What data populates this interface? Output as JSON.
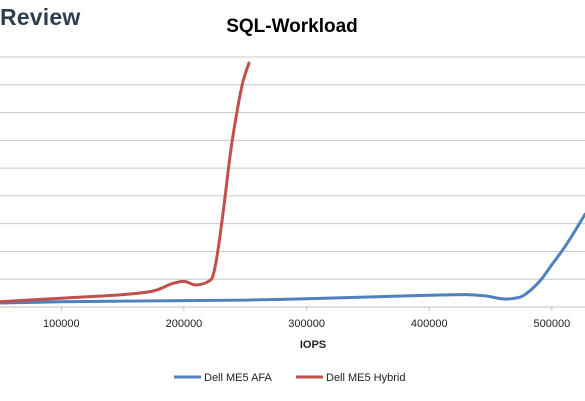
{
  "header": {
    "brand_text": "Review"
  },
  "chart_data": {
    "type": "line",
    "title": "SQL-Workload",
    "xlabel": "IOPS",
    "ylabel": "",
    "xlim": [
      50000,
      527000
    ],
    "ylim": [
      0,
      10
    ],
    "grid": true,
    "x_ticks": [
      100000,
      200000,
      300000,
      400000,
      500000
    ],
    "x_tick_labels": [
      "100000",
      "200000",
      "300000",
      "400000",
      "500000"
    ],
    "legend_position": "bottom",
    "series": [
      {
        "name": "Dell ME5 AFA",
        "color": "#4f81bd",
        "points": [
          [
            50000,
            0.0
          ],
          [
            100000,
            0.05
          ],
          [
            150000,
            0.08
          ],
          [
            200000,
            0.1
          ],
          [
            250000,
            0.12
          ],
          [
            300000,
            0.18
          ],
          [
            350000,
            0.25
          ],
          [
            400000,
            0.32
          ],
          [
            430000,
            0.35
          ],
          [
            445000,
            0.3
          ],
          [
            460000,
            0.17
          ],
          [
            470000,
            0.2
          ],
          [
            478000,
            0.35
          ],
          [
            490000,
            0.9
          ],
          [
            500000,
            1.6
          ],
          [
            510000,
            2.3
          ],
          [
            520000,
            3.1
          ],
          [
            527000,
            3.7
          ]
        ]
      },
      {
        "name": "Dell ME5 Hybrid",
        "color": "#c0504d",
        "points": [
          [
            50000,
            0.05
          ],
          [
            100000,
            0.2
          ],
          [
            150000,
            0.35
          ],
          [
            175000,
            0.5
          ],
          [
            190000,
            0.8
          ],
          [
            200000,
            0.9
          ],
          [
            210000,
            0.75
          ],
          [
            220000,
            0.9
          ],
          [
            224000,
            1.2
          ],
          [
            228000,
            2.3
          ],
          [
            233000,
            4.2
          ],
          [
            238000,
            6.3
          ],
          [
            243000,
            7.9
          ],
          [
            248000,
            9.2
          ],
          [
            253000,
            10.0
          ]
        ]
      }
    ]
  }
}
